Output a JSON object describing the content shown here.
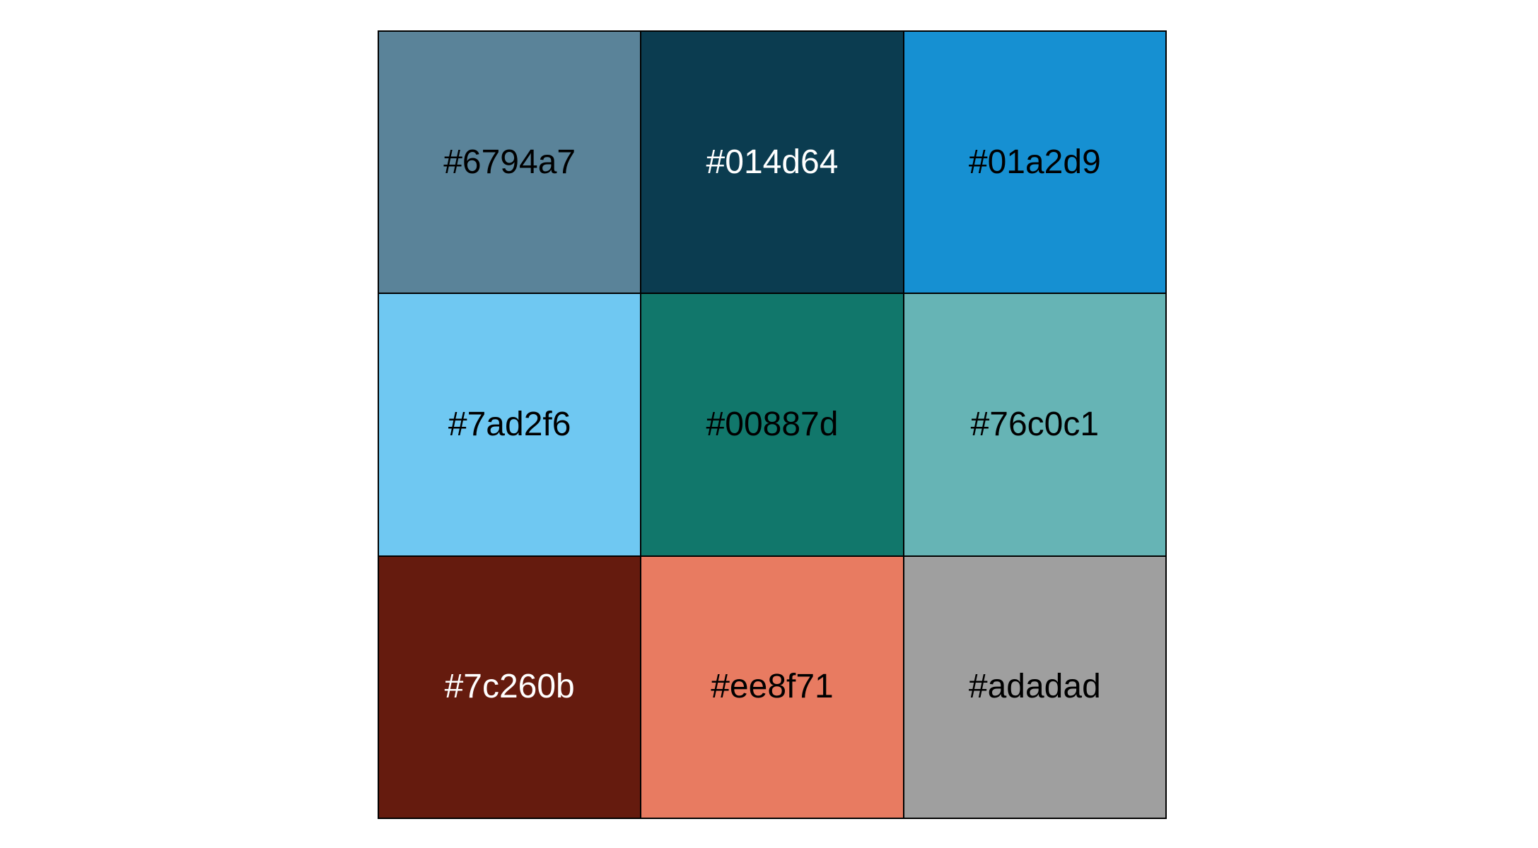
{
  "chart_data": {
    "type": "table",
    "rows": 3,
    "columns": 3,
    "swatches": [
      {
        "label": "#6794a7",
        "fill": "#5a8399",
        "text_color": "#000000"
      },
      {
        "label": "#014d64",
        "fill": "#0b3c50",
        "text_color": "#ffffff"
      },
      {
        "label": "#01a2d9",
        "fill": "#1690d2",
        "text_color": "#000000"
      },
      {
        "label": "#7ad2f6",
        "fill": "#6fc8f2",
        "text_color": "#000000"
      },
      {
        "label": "#00887d",
        "fill": "#11776b",
        "text_color": "#000000"
      },
      {
        "label": "#76c0c1",
        "fill": "#66b4b5",
        "text_color": "#000000"
      },
      {
        "label": "#7c260b",
        "fill": "#651b0e",
        "text_color": "#ffffff"
      },
      {
        "label": "#ee8f71",
        "fill": "#e87b61",
        "text_color": "#000000"
      },
      {
        "label": "#adadad",
        "fill": "#9f9f9f",
        "text_color": "#000000"
      }
    ]
  }
}
